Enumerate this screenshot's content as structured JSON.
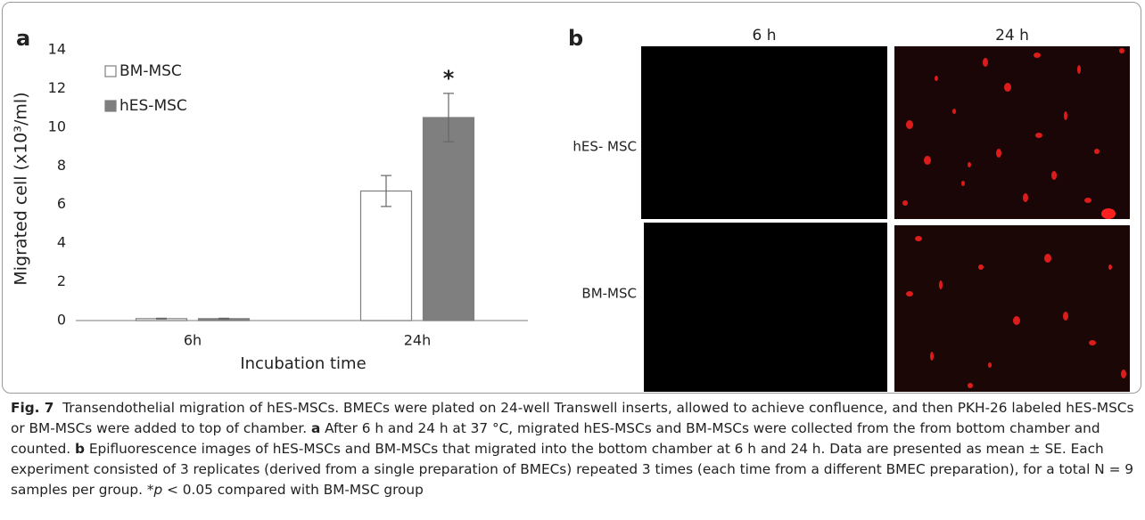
{
  "chart_data": {
    "type": "bar",
    "panel_label": "a",
    "x_label": "Incubation time",
    "y_label": "Migrated cell (x10³/ml)",
    "categories": [
      "6h",
      "24h"
    ],
    "series": [
      {
        "name": "BM-MSC",
        "color": "#ffffff",
        "edge": "#808080",
        "values": [
          0.1,
          6.7
        ],
        "errors": [
          0.02,
          0.8
        ]
      },
      {
        "name": "hES-MSC",
        "color": "#7f7f7f",
        "edge": "#7f7f7f",
        "values": [
          0.1,
          10.5
        ],
        "errors": [
          0.02,
          1.25
        ]
      }
    ],
    "ylim": [
      0,
      14
    ],
    "yticks": [
      0,
      2,
      4,
      6,
      8,
      10,
      12,
      14
    ],
    "grid": false,
    "annotation": "*",
    "legend": "top-left"
  },
  "panel_b": {
    "label": "b",
    "columns": [
      "6 h",
      "24 h"
    ],
    "rows": [
      "hES- MSC",
      "BM-MSC"
    ]
  },
  "caption": [
    {
      "text": "Fig. 7",
      "bold": true
    },
    {
      "text": "  Transendothelial migration of hES-MSCs. BMECs were plated on 24-well Transwell inserts, allowed to achieve confluence, and then PKH-26 labeled hES-MSCs or BM-MSCs were added to top of chamber. "
    },
    {
      "text": "a",
      "bold": true
    },
    {
      "text": " After 6 h and 24 h at 37 °C, migrated hES-MSCs and BM-MSCs were collected from the from bottom chamber and counted. "
    },
    {
      "text": "b",
      "bold": true
    },
    {
      "text": " Epifluorescence images of hES-MSCs and BM-MSCs that migrated into the bottom chamber at 6 h and 24 h. Data are presented as mean ± SE. Each experiment consisted of 3 replicates (derived from a single preparation of BMECs) repeated 3 times (each time from a different BMEC preparation), for a total N = 9 samples per group. *"
    },
    {
      "text": "p",
      "italic": true
    },
    {
      "text": " < 0.05 compared with BM-MSC group"
    }
  ]
}
